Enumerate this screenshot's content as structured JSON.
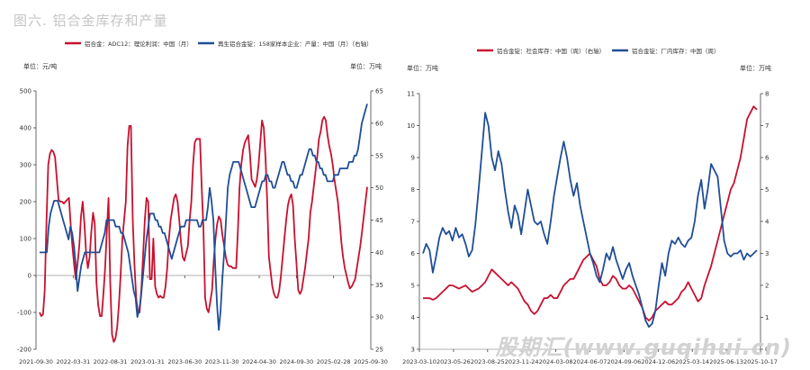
{
  "figure_title": "图六. 铝合金库存和产量",
  "watermark": "股期汇(www.guqihui.cn)",
  "colors": {
    "red": "#c8102e",
    "blue": "#1f4e96",
    "axis": "#444444",
    "zero": "#999999"
  },
  "chart_data": [
    {
      "type": "line",
      "unit_left": "单位：元/吨",
      "unit_right": "单位：万吨",
      "left_axis": {
        "ylim": [
          -200,
          500
        ],
        "ticks": [
          -200,
          -100,
          0,
          100,
          200,
          300,
          400,
          500
        ]
      },
      "right_axis": {
        "ylim": [
          25,
          65
        ],
        "ticks": [
          25,
          30,
          35,
          40,
          45,
          50,
          55,
          60,
          65
        ]
      },
      "x_ticks": [
        "2021-09-30",
        "2022-03-31",
        "2022-08-31",
        "2023-01-31",
        "2023-06-30",
        "2023-11-30",
        "2024-04-30",
        "2024-09-30",
        "2025-02-28",
        "2025-09-30"
      ],
      "grid": false,
      "legend_position": "top",
      "series": [
        {
          "name": "铝合金：ADC12：理论利润：中国（月）",
          "axis": "left",
          "color": "red",
          "values": [
            -100,
            -110,
            -105,
            -40,
            150,
            300,
            330,
            340,
            335,
            320,
            260,
            205,
            200,
            200,
            195,
            200,
            205,
            210,
            140,
            80,
            30,
            -10,
            30,
            80,
            160,
            200,
            140,
            60,
            20,
            50,
            120,
            170,
            140,
            -20,
            -80,
            -110,
            -110,
            -50,
            20,
            120,
            210,
            -20,
            -160,
            -180,
            -170,
            -140,
            -80,
            0,
            100,
            150,
            200,
            350,
            405,
            405,
            150,
            30,
            -60,
            -100,
            -100,
            -40,
            50,
            150,
            210,
            200,
            -10,
            -10,
            100,
            -30,
            -50,
            -60,
            -55,
            -60,
            -60,
            -30,
            20,
            100,
            150,
            180,
            210,
            220,
            200,
            150,
            90,
            50,
            40,
            60,
            80,
            150,
            200,
            300,
            360,
            370,
            370,
            370,
            240,
            130,
            -60,
            -90,
            -100,
            -70,
            -40,
            40,
            100,
            140,
            160,
            150,
            110,
            80,
            50,
            30,
            25,
            25,
            20,
            20,
            20,
            120,
            240,
            300,
            340,
            360,
            370,
            380,
            330,
            260,
            250,
            240,
            260,
            300,
            360,
            420,
            400,
            320,
            200,
            50,
            10,
            -30,
            -50,
            -60,
            -60,
            -40,
            0,
            50,
            100,
            150,
            190,
            210,
            220,
            190,
            100,
            30,
            -40,
            -50,
            -40,
            -10,
            20,
            60,
            100,
            170,
            200,
            240,
            280,
            320,
            370,
            390,
            420,
            430,
            420,
            380,
            350,
            330,
            300,
            260,
            230,
            200,
            150,
            90,
            50,
            20,
            0,
            -20,
            -35,
            -30,
            -20,
            -10,
            20,
            50,
            80,
            120,
            160,
            200,
            240
          ]
        },
        {
          "name": "再生铝合金锭：158家样本企业：产量：中国（月）（右轴）",
          "axis": "right",
          "color": "blue",
          "values": [
            40,
            40,
            40,
            40,
            40,
            44,
            46,
            47,
            48,
            48,
            48,
            47,
            46,
            45,
            44,
            43,
            42,
            44,
            43,
            41,
            38,
            34,
            36,
            38,
            39,
            40,
            40,
            40,
            40,
            40,
            40,
            40,
            40,
            40,
            41,
            42,
            43,
            45,
            45,
            45,
            45,
            45,
            44,
            44,
            44,
            43,
            43,
            42,
            41,
            40,
            38,
            36,
            34,
            33,
            30,
            31,
            33,
            36,
            39,
            42,
            44,
            46,
            46,
            46,
            45,
            45,
            44,
            44,
            43,
            43,
            42,
            41,
            40,
            39,
            40,
            41,
            42,
            43,
            44,
            44,
            44,
            45,
            45,
            45,
            45,
            45,
            45,
            45,
            44,
            44,
            45,
            45,
            45,
            47,
            50,
            48,
            45,
            38,
            32,
            28,
            31,
            36,
            40,
            45,
            50,
            52,
            53,
            54,
            54,
            54,
            54,
            53,
            52,
            51,
            50,
            49,
            48,
            47,
            47,
            47,
            48,
            49,
            50,
            51,
            51,
            52,
            52,
            51,
            51,
            50,
            50,
            51,
            52,
            53,
            54,
            54,
            53,
            52,
            52,
            51,
            51,
            50,
            50,
            51,
            52,
            52,
            53,
            54,
            55,
            56,
            56,
            55,
            55,
            54,
            54,
            53,
            53,
            52,
            52,
            51,
            51,
            51,
            51,
            52,
            52,
            52,
            53,
            53,
            53,
            53,
            53,
            54,
            54,
            54,
            55,
            55,
            56,
            58,
            60,
            61,
            62,
            63
          ]
        }
      ]
    },
    {
      "type": "line",
      "unit_left": "单位：万吨",
      "unit_right": "单位：万吨",
      "left_axis": {
        "ylim": [
          3,
          11
        ],
        "ticks": [
          3,
          4,
          5,
          6,
          7,
          8,
          9,
          10,
          11
        ]
      },
      "right_axis": {
        "ylim": [
          0,
          8
        ],
        "ticks": [
          0,
          1,
          2,
          3,
          4,
          5,
          6,
          7,
          8
        ]
      },
      "x_ticks": [
        "2023-03-10",
        "2023-05-26",
        "2023-08-25",
        "2023-11-24",
        "2024-03-08",
        "2024-06-07",
        "2024-09-06",
        "2024-12-06",
        "2025-03-14",
        "2025-06-13",
        "2025-10-17"
      ],
      "grid": false,
      "legend_position": "top",
      "series": [
        {
          "name": "铝合金锭：社会库存：中国（周）（右轴）",
          "axis": "right",
          "color": "red",
          "values": [
            1.6,
            1.6,
            1.6,
            1.55,
            1.6,
            1.7,
            1.8,
            1.9,
            2.0,
            2.0,
            1.95,
            1.9,
            1.95,
            2.0,
            1.9,
            1.8,
            1.85,
            1.9,
            2.0,
            2.1,
            2.3,
            2.5,
            2.4,
            2.3,
            2.2,
            2.1,
            2.0,
            2.1,
            2.0,
            1.9,
            1.7,
            1.5,
            1.4,
            1.2,
            1.1,
            1.2,
            1.4,
            1.6,
            1.6,
            1.7,
            1.6,
            1.6,
            1.8,
            2.0,
            2.1,
            2.2,
            2.2,
            2.4,
            2.6,
            2.8,
            2.9,
            3.0,
            2.8,
            2.6,
            2.2,
            2.0,
            2.0,
            2.1,
            2.3,
            2.2,
            2.0,
            1.9,
            1.9,
            2.0,
            1.9,
            1.7,
            1.5,
            1.3,
            1.0,
            0.9,
            1.0,
            1.2,
            1.3,
            1.4,
            1.5,
            1.4,
            1.4,
            1.5,
            1.6,
            1.8,
            1.9,
            2.1,
            1.9,
            1.7,
            1.5,
            1.6,
            2.0,
            2.3,
            2.6,
            3.0,
            3.4,
            3.8,
            4.2,
            4.6,
            5.0,
            5.2,
            5.6,
            6.0,
            6.6,
            7.2,
            7.4,
            7.6,
            7.5
          ]
        },
        {
          "name": "铝合金锭：厂内库存：中国（周）",
          "axis": "left",
          "color": "blue",
          "values": [
            6.0,
            6.3,
            6.1,
            5.4,
            5.9,
            6.5,
            6.8,
            6.6,
            6.7,
            6.4,
            6.8,
            6.5,
            6.6,
            6.3,
            5.9,
            6.1,
            6.9,
            8.0,
            9.2,
            10.4,
            10.0,
            9.0,
            8.6,
            9.2,
            8.8,
            8.0,
            7.3,
            6.8,
            7.5,
            7.2,
            6.6,
            7.3,
            8.0,
            7.5,
            7.0,
            6.9,
            7.0,
            6.6,
            6.3,
            7.0,
            7.8,
            8.4,
            9.0,
            9.5,
            9.0,
            8.3,
            7.8,
            8.2,
            7.5,
            7.0,
            6.5,
            6.0,
            5.7,
            5.3,
            5.1,
            5.5,
            6.0,
            5.8,
            6.2,
            5.8,
            5.5,
            5.2,
            5.5,
            5.7,
            5.3,
            5.0,
            4.7,
            4.3,
            3.9,
            3.7,
            3.8,
            4.2,
            5.0,
            5.7,
            5.3,
            6.0,
            6.4,
            6.3,
            6.5,
            6.3,
            6.2,
            6.4,
            6.5,
            7.0,
            7.8,
            8.3,
            7.4,
            8.0,
            8.8,
            8.6,
            8.4,
            7.4,
            6.4,
            6.0,
            5.9,
            6.0,
            6.0,
            6.1,
            5.8,
            6.0,
            5.9,
            6.0,
            6.1
          ]
        }
      ]
    }
  ]
}
